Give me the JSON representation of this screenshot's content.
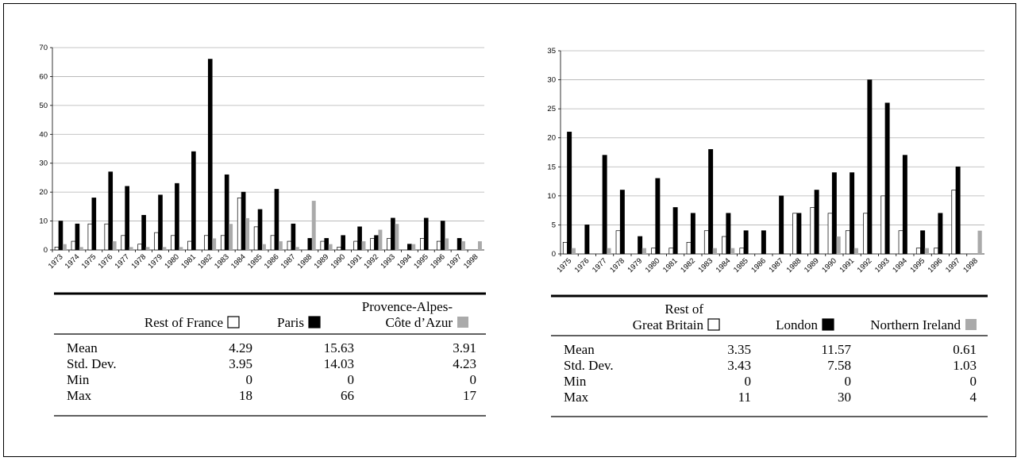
{
  "chart_data": [
    {
      "type": "bar",
      "categories": [
        "1973",
        "1974",
        "1975",
        "1976",
        "1977",
        "1978",
        "1979",
        "1980",
        "1981",
        "1982",
        "1983",
        "1984",
        "1985",
        "1986",
        "1987",
        "1988",
        "1989",
        "1990",
        "1991",
        "1992",
        "1993",
        "1994",
        "1995",
        "1996",
        "1997",
        "1998"
      ],
      "ylim": [
        0,
        70
      ],
      "yticks": [
        0,
        10,
        20,
        30,
        40,
        50,
        60,
        70
      ],
      "grid": true,
      "colors": [
        "#ffffff",
        "#000000",
        "#aaaaaa"
      ],
      "series": [
        {
          "name": "Rest of France",
          "values": [
            1,
            3,
            9,
            9,
            5,
            2,
            6,
            5,
            3,
            5,
            5,
            18,
            8,
            5,
            3,
            0,
            3,
            1,
            3,
            4,
            4,
            0,
            4,
            3,
            0,
            0
          ]
        },
        {
          "name": "Paris",
          "values": [
            10,
            9,
            18,
            27,
            22,
            12,
            19,
            23,
            34,
            66,
            26,
            20,
            14,
            21,
            9,
            4,
            4,
            5,
            8,
            5,
            11,
            2,
            11,
            10,
            4,
            0
          ]
        },
        {
          "name": "Provence-Alpes-Côte d’Azur",
          "values": [
            2,
            1,
            0,
            3,
            1,
            1,
            1,
            1,
            0,
            4,
            9,
            11,
            2,
            3,
            1,
            17,
            2,
            0,
            3,
            7,
            9,
            2,
            0,
            4,
            3,
            3
          ]
        }
      ]
    },
    {
      "type": "bar",
      "categories": [
        "1975",
        "1976",
        "1977",
        "1978",
        "1979",
        "1980",
        "1981",
        "1982",
        "1983",
        "1984",
        "1985",
        "1986",
        "1987",
        "1988",
        "1989",
        "1990",
        "1991",
        "1992",
        "1993",
        "1994",
        "1995",
        "1996",
        "1997",
        "1998"
      ],
      "ylim": [
        0,
        35
      ],
      "yticks": [
        0,
        5,
        10,
        15,
        20,
        25,
        30,
        35
      ],
      "grid": true,
      "colors": [
        "#ffffff",
        "#000000",
        "#aaaaaa"
      ],
      "series": [
        {
          "name": "Rest of Great Britain",
          "values": [
            2,
            0,
            0,
            4,
            0,
            1,
            1,
            2,
            4,
            3,
            1,
            0,
            0,
            7,
            8,
            7,
            4,
            7,
            10,
            4,
            1,
            1,
            11,
            0
          ]
        },
        {
          "name": "London",
          "values": [
            21,
            5,
            17,
            11,
            3,
            13,
            8,
            7,
            18,
            7,
            4,
            4,
            10,
            7,
            11,
            14,
            14,
            30,
            26,
            17,
            4,
            7,
            15,
            0
          ]
        },
        {
          "name": "Northern Ireland",
          "values": [
            1,
            0,
            1,
            0,
            1,
            0,
            0,
            0,
            1,
            1,
            0,
            0,
            0,
            0,
            0,
            3,
            1,
            0,
            0,
            0,
            1,
            0,
            0,
            4
          ]
        }
      ]
    }
  ],
  "tables": [
    {
      "headers": [
        {
          "lines": [
            "Rest of France"
          ],
          "swatch": "#ffffff"
        },
        {
          "lines": [
            "Paris"
          ],
          "swatch": "#000000"
        },
        {
          "lines": [
            "Provence-Alpes-",
            "Côte d’Azur"
          ],
          "swatch": "#aaaaaa"
        }
      ],
      "rows": [
        {
          "label": "Mean",
          "values": [
            "4.29",
            "15.63",
            "3.91"
          ]
        },
        {
          "label": "Std. Dev.",
          "values": [
            "3.95",
            "14.03",
            "4.23"
          ]
        },
        {
          "label": "Min",
          "values": [
            "0",
            "0",
            "0"
          ]
        },
        {
          "label": "Max",
          "values": [
            "18",
            "66",
            "17"
          ]
        }
      ]
    },
    {
      "headers": [
        {
          "lines": [
            "Rest of",
            "Great Britain"
          ],
          "swatch": "#ffffff"
        },
        {
          "lines": [
            "London"
          ],
          "swatch": "#000000"
        },
        {
          "lines": [
            "Northern Ireland"
          ],
          "swatch": "#aaaaaa"
        }
      ],
      "rows": [
        {
          "label": "Mean",
          "values": [
            "3.35",
            "11.57",
            "0.61"
          ]
        },
        {
          "label": "Std. Dev.",
          "values": [
            "3.43",
            "7.58",
            "1.03"
          ]
        },
        {
          "label": "Min",
          "values": [
            "0",
            "0",
            "0"
          ]
        },
        {
          "label": "Max",
          "values": [
            "11",
            "30",
            "4"
          ]
        }
      ]
    }
  ]
}
